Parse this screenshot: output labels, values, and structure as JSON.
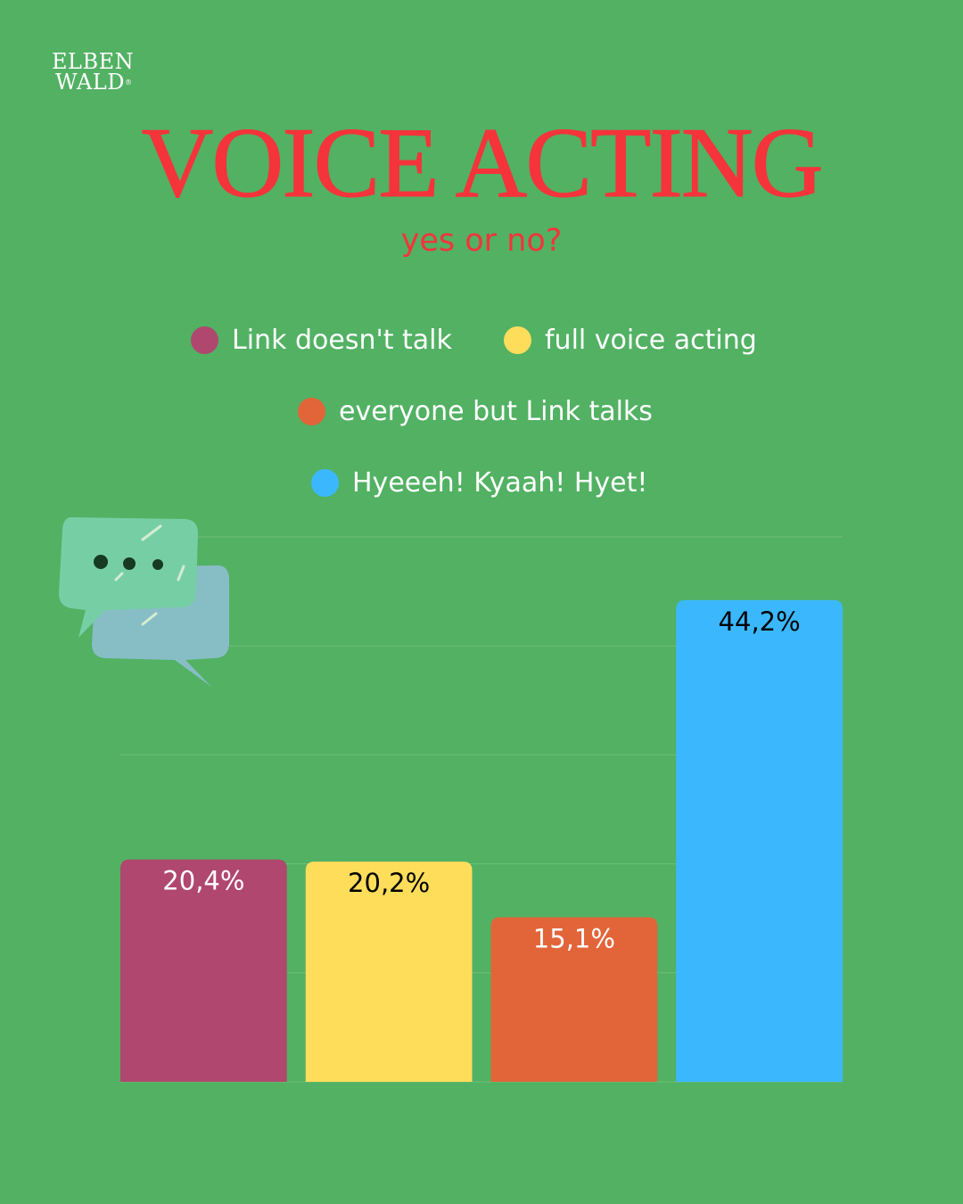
{
  "logo": {
    "line1": "ELBEN",
    "line2": "WALD",
    "mark": "®"
  },
  "title": "VOICE ACTING",
  "subtitle": "yes or no?",
  "colors": {
    "background": "#52b163",
    "title": "#f5333a",
    "gridline": "#6ec07b"
  },
  "decoration": "speech-bubbles-icon",
  "chart_data": {
    "type": "bar",
    "categories": [
      "Link doesn't talk",
      "full voice acting",
      "everyone but Link talks",
      "Hyeeeh! Kyaah! Hyet!"
    ],
    "values": [
      20.4,
      20.2,
      15.1,
      44.2
    ],
    "data_labels": [
      "20,4%",
      "20,2%",
      "15,1%",
      "44,2%"
    ],
    "colors": [
      "#b0476e",
      "#fedd5a",
      "#e2653a",
      "#3bb8fd"
    ],
    "label_colors": [
      "#ffffff",
      "#000000",
      "#ffffff",
      "#000000"
    ],
    "ylim": [
      0,
      50
    ],
    "grid": true,
    "grid_step": 10,
    "legend_placement": "top",
    "title": "",
    "xlabel": "",
    "ylabel": ""
  }
}
